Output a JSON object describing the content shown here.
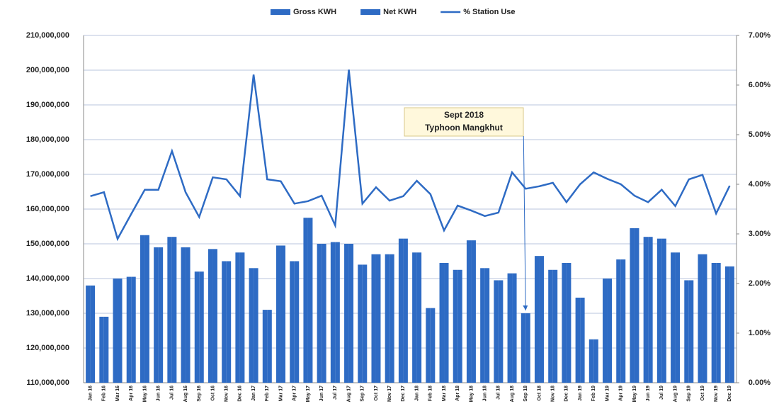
{
  "chart_data": {
    "type": "bar",
    "categories": [
      "Jan 16",
      "Feb 16",
      "Mar 16",
      "Apr 16",
      "May 16",
      "Jun 16",
      "Jul 16",
      "Aug 16",
      "Sep 16",
      "Oct 16",
      "Nov 16",
      "Dec 16",
      "Jan 17",
      "Feb 17",
      "Mar 17",
      "Apr 17",
      "May 17",
      "Jun 17",
      "Jul 17",
      "Aug 17",
      "Sep 17",
      "Oct 17",
      "Nov 17",
      "Dec 17",
      "Jan 18",
      "Feb 18",
      "Mar 18",
      "Apr 18",
      "May 18",
      "Jun 18",
      "Jul 18",
      "Aug 18",
      "Sep 18",
      "Oct 18",
      "Nov 18",
      "Dec 18",
      "Jan 19",
      "Feb 19",
      "Mar 19",
      "Apr 19",
      "May 19",
      "Jun 19",
      "Jul 19",
      "Aug 19",
      "Sep 19",
      "Oct 19",
      "Nov 19",
      "Dec 19"
    ],
    "series": [
      {
        "name": "Gross KWH",
        "color": "#2e6bc4",
        "type": "bar",
        "values": [
          138000000,
          129000000,
          140000000,
          140500000,
          152500000,
          149000000,
          152000000,
          149000000,
          142000000,
          148500000,
          145000000,
          147500000,
          143000000,
          131000000,
          149500000,
          145000000,
          157500000,
          150000000,
          150500000,
          150000000,
          144000000,
          147000000,
          147000000,
          151500000,
          147500000,
          131500000,
          144500000,
          142500000,
          151000000,
          143000000,
          139500000,
          141500000,
          130000000,
          146500000,
          142500000,
          144500000,
          134500000,
          122500000,
          140000000,
          145500000,
          154500000,
          152000000,
          151500000,
          147500000,
          139500000,
          147000000,
          144500000,
          143500000
        ]
      },
      {
        "name": "Net KWH",
        "color": "#2e6bc4",
        "type": "bar",
        "values": [
          138000000,
          129000000,
          140000000,
          140500000,
          152500000,
          149000000,
          152000000,
          149000000,
          142000000,
          148500000,
          145000000,
          147500000,
          143000000,
          131000000,
          149500000,
          145000000,
          157500000,
          150000000,
          150500000,
          150000000,
          144000000,
          147000000,
          147000000,
          151500000,
          147500000,
          131500000,
          144500000,
          142500000,
          151000000,
          143000000,
          139500000,
          141500000,
          130000000,
          146500000,
          142500000,
          144500000,
          134500000,
          122500000,
          140000000,
          145500000,
          154500000,
          152000000,
          151500000,
          147500000,
          139500000,
          147000000,
          144500000,
          143500000
        ]
      },
      {
        "name": "% Station Use",
        "color": "#2e6bc4",
        "type": "line",
        "axis": "y2",
        "values": [
          3.76,
          3.84,
          2.9,
          3.4,
          3.89,
          3.89,
          4.67,
          3.84,
          3.34,
          4.14,
          4.1,
          3.76,
          6.21,
          4.1,
          4.06,
          3.61,
          3.66,
          3.77,
          3.17,
          6.31,
          3.61,
          3.94,
          3.67,
          3.76,
          4.07,
          3.8,
          3.07,
          3.57,
          3.47,
          3.36,
          3.43,
          4.24,
          3.91,
          3.96,
          4.03,
          3.64,
          4.0,
          4.24,
          4.11,
          4.0,
          3.77,
          3.64,
          3.89,
          3.56,
          4.1,
          4.19,
          3.41,
          3.97
        ]
      }
    ],
    "ylim": [
      110000000,
      210000000
    ],
    "yticks": [
      {
        "value": 110000000,
        "label": "110,000,000"
      },
      {
        "value": 120000000,
        "label": "120,000,000"
      },
      {
        "value": 130000000,
        "label": "130,000,000"
      },
      {
        "value": 140000000,
        "label": "140,000,000"
      },
      {
        "value": 150000000,
        "label": "150,000,000"
      },
      {
        "value": 160000000,
        "label": "160,000,000"
      },
      {
        "value": 170000000,
        "label": "170,000,000"
      },
      {
        "value": 180000000,
        "label": "180,000,000"
      },
      {
        "value": 190000000,
        "label": "190,000,000"
      },
      {
        "value": 200000000,
        "label": "200,000,000"
      },
      {
        "value": 210000000,
        "label": "210,000,000"
      }
    ],
    "y2lim": [
      0,
      7
    ],
    "y2ticks": [
      {
        "value": 0,
        "label": "0.00%"
      },
      {
        "value": 1,
        "label": "1.00%"
      },
      {
        "value": 2,
        "label": "2.00%"
      },
      {
        "value": 3,
        "label": "3.00%"
      },
      {
        "value": 4,
        "label": "4.00%"
      },
      {
        "value": 5,
        "label": "5.00%"
      },
      {
        "value": 6,
        "label": "6.00%"
      },
      {
        "value": 7,
        "label": "7.00%"
      }
    ],
    "grid": true,
    "legend": "top",
    "annotation": {
      "lines": [
        "Sept 2018",
        "Typhoon Mangkhut"
      ],
      "category": 32
    }
  }
}
